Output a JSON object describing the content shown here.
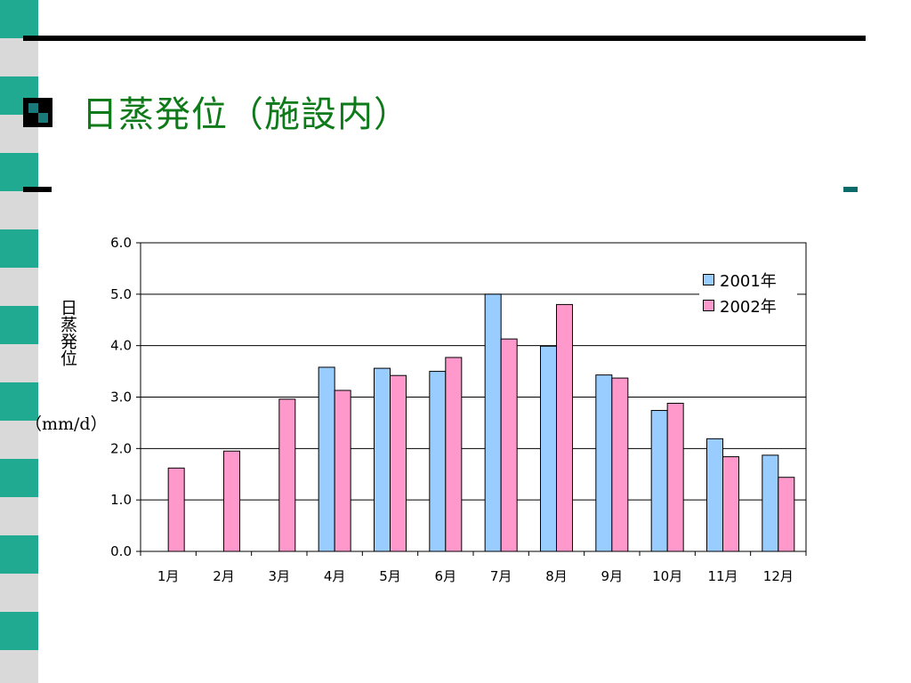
{
  "slide": {
    "title": "日蒸発位（施設内）",
    "accent_color": "#0f7a1a",
    "stripe_colors": [
      "#1faa91",
      "#d9d9d9"
    ]
  },
  "chart_data": {
    "type": "bar",
    "title": "",
    "ylabel": "日蒸発位",
    "yunit": "（mm/d）",
    "xlabel": "",
    "categories": [
      "1月",
      "2月",
      "3月",
      "4月",
      "5月",
      "6月",
      "7月",
      "8月",
      "9月",
      "10月",
      "11月",
      "12月"
    ],
    "ylim": [
      0,
      6
    ],
    "yticks": [
      "0.0",
      "1.0",
      "2.0",
      "3.0",
      "4.0",
      "5.0",
      "6.0"
    ],
    "grid": true,
    "legend_position": "top-right",
    "series": [
      {
        "name": "2001年",
        "color": "#99ccff",
        "values": [
          null,
          null,
          null,
          3.58,
          3.56,
          3.5,
          5.0,
          3.99,
          3.43,
          2.74,
          2.19,
          1.87
        ]
      },
      {
        "name": "2002年",
        "color": "#ff99cc",
        "values": [
          1.62,
          1.95,
          2.96,
          3.13,
          3.42,
          3.77,
          4.13,
          4.8,
          3.37,
          2.88,
          1.84,
          1.44
        ]
      }
    ]
  }
}
